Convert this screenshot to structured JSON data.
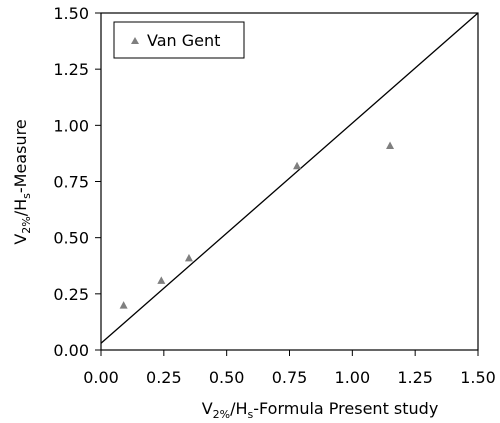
{
  "chart_data": {
    "type": "scatter",
    "title": "",
    "xlabel": {
      "main1": "V",
      "sub1": "2%",
      "main2": "/H",
      "sub2": "s",
      "main3": "-Formula Present study"
    },
    "ylabel": {
      "main1": "V",
      "sub1": "2%",
      "main2": "/H",
      "sub2": "s",
      "main3": "-Measure"
    },
    "xlim": [
      0,
      1.5
    ],
    "ylim": [
      0,
      1.5
    ],
    "xticks": [
      "0.00",
      "0.25",
      "0.50",
      "0.75",
      "1.00",
      "1.25",
      "1.50"
    ],
    "yticks": [
      "0.00",
      "0.25",
      "0.50",
      "0.75",
      "1.00",
      "1.25",
      "1.50"
    ],
    "grid": false,
    "legend": {
      "position": "top-left",
      "entries": [
        "Van Gent"
      ]
    },
    "series": [
      {
        "name": "Van Gent",
        "marker": "triangle",
        "color": "#7f7f7f",
        "points": [
          {
            "x": 0.09,
            "y": 0.2
          },
          {
            "x": 0.24,
            "y": 0.31
          },
          {
            "x": 0.35,
            "y": 0.41
          },
          {
            "x": 0.78,
            "y": 0.82
          },
          {
            "x": 1.15,
            "y": 0.91
          }
        ]
      }
    ],
    "reference_line": {
      "type": "line",
      "x": [
        0,
        1.5
      ],
      "y": [
        0.03,
        1.5
      ],
      "color": "#000000"
    }
  }
}
